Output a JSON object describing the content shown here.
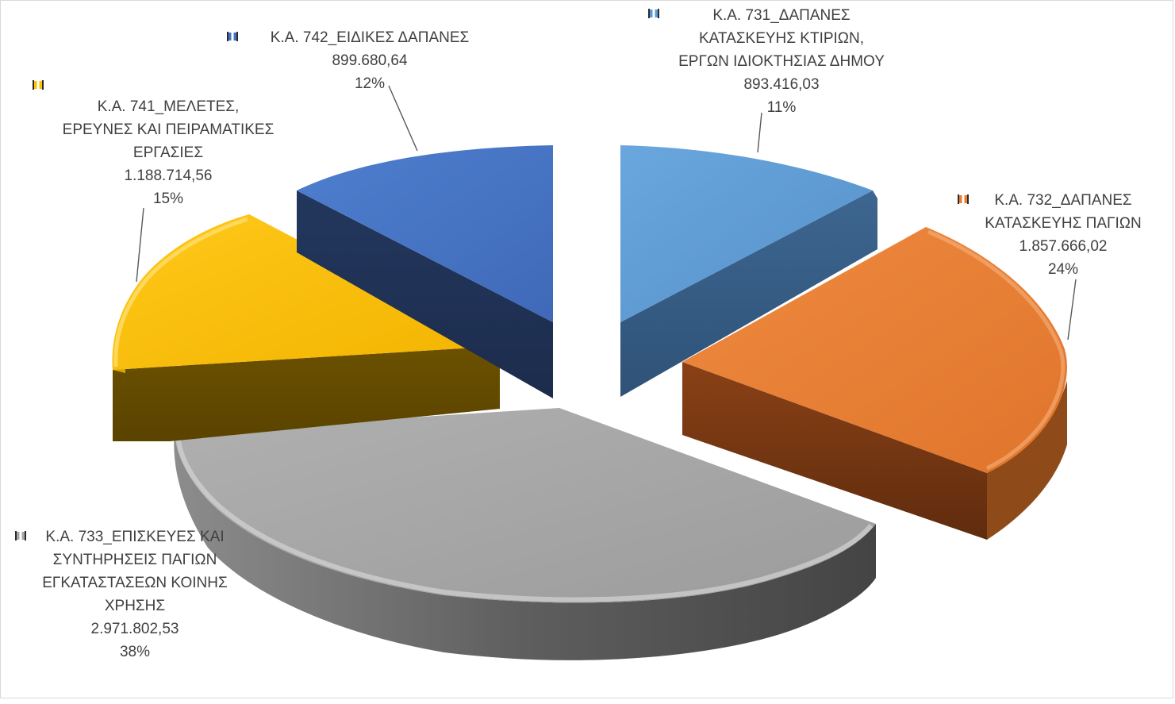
{
  "chart_data": {
    "type": "pie",
    "title": "",
    "slices": [
      {
        "name": "Κ.Α. 731_ΔΑΠΑΝΕΣ ΚΑΤΑΣΚΕΥΗΣ ΚΤΙΡΙΩΝ, ΕΡΓΩΝ ΙΔΙΟΚΤΗΣΙΑΣ ΔΗΜΟΥ",
        "label_lines": [
          "Κ.Α. 731_ΔΑΠΑΝΕΣ",
          "ΚΑΤΑΣΚΕΥΗΣ ΚΤΙΡΙΩΝ,",
          "ΕΡΓΩΝ ΙΔΙΟΚΤΗΣΙΑΣ ΔΗΜΟΥ"
        ],
        "value": 893416.03,
        "value_label": "893.416,03",
        "percent_label": "11%",
        "color": "#5b9bd5"
      },
      {
        "name": "Κ.Α. 732_ΔΑΠΑΝΕΣ ΚΑΤΑΣΚΕΥΗΣ ΠΑΓΙΩΝ",
        "label_lines": [
          "Κ.Α. 732_ΔΑΠΑΝΕΣ",
          "ΚΑΤΑΣΚΕΥΗΣ ΠΑΓΙΩΝ"
        ],
        "value": 1857666.02,
        "value_label": "1.857.666,02",
        "percent_label": "24%",
        "color": "#ed7d31"
      },
      {
        "name": "Κ.Α. 733_ΕΠΙΣΚΕΥΕΣ ΚΑΙ ΣΥΝΤΗΡΗΣΕΙΣ ΠΑΓΙΩΝ ΕΓΚΑΤΑΣΤΑΣΕΩΝ ΚΟΙΝΗΣ ΧΡΗΣΗΣ",
        "label_lines": [
          "Κ.Α. 733_ΕΠΙΣΚΕΥΕΣ ΚΑΙ",
          "ΣΥΝΤΗΡΗΣΕΙΣ ΠΑΓΙΩΝ",
          "ΕΓΚΑΤΑΣΤΑΣΕΩΝ ΚΟΙΝΗΣ",
          "ΧΡΗΣΗΣ"
        ],
        "value": 2971802.53,
        "value_label": "2.971.802,53",
        "percent_label": "38%",
        "color": "#a5a5a5"
      },
      {
        "name": "Κ.Α. 741_ΜΕΛΕΤΕΣ, ΕΡΕΥΝΕΣ ΚΑΙ ΠΕΙΡΑΜΑΤΙΚΕΣ ΕΡΓΑΣΙΕΣ",
        "label_lines": [
          "Κ.Α. 741_ΜΕΛΕΤΕΣ,",
          "ΕΡΕΥΝΕΣ ΚΑΙ ΠΕΙΡΑΜΑΤΙΚΕΣ",
          "ΕΡΓΑΣΙΕΣ"
        ],
        "value": 1188714.56,
        "value_label": "1.188.714,56",
        "percent_label": "15%",
        "color": "#ffc000"
      },
      {
        "name": "Κ.Α. 742_ΕΙΔΙΚΕΣ ΔΑΠΑΝΕΣ",
        "label_lines": [
          "Κ.Α. 742_ΕΙΔΙΚΕΣ ΔΑΠΑΝΕΣ"
        ],
        "value": 899680.64,
        "value_label": "899.680,64",
        "percent_label": "12%",
        "color": "#4472c4"
      }
    ],
    "exploded": true,
    "three_d": true,
    "legend": "none"
  }
}
